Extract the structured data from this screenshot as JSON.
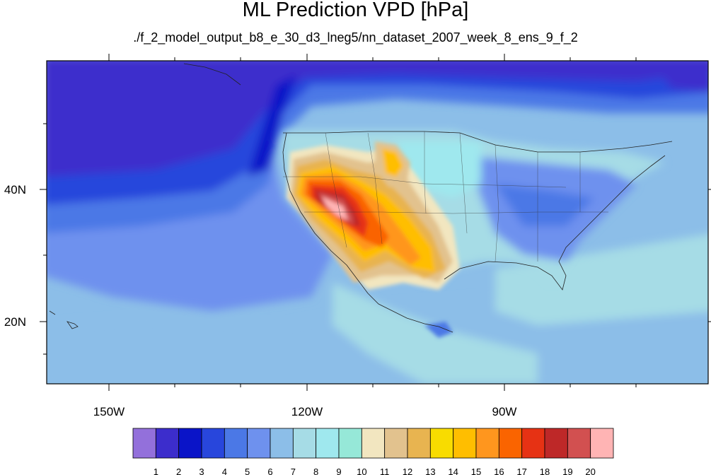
{
  "title": "ML Prediction VPD [hPa]",
  "subtitle": "./f_2_model_output_b8_e_30_d3_lneg5/nn_dataset_2007_week_8_ens_9_f_2",
  "map": {
    "lon_range": [
      -160,
      -62
    ],
    "lat_range": [
      10,
      59
    ],
    "lon_ticks": [
      {
        "value": -150,
        "label": "150W"
      },
      {
        "value": -120,
        "label": "120W"
      },
      {
        "value": -90,
        "label": "90W"
      }
    ],
    "lat_ticks": [
      {
        "value": 40,
        "label": "40N"
      },
      {
        "value": 20,
        "label": "20N"
      }
    ]
  },
  "colorbar": {
    "labels": [
      "1",
      "2",
      "3",
      "4",
      "5",
      "6",
      "7",
      "8",
      "9",
      "10",
      "11",
      "12",
      "13",
      "14",
      "15",
      "16",
      "17",
      "18",
      "19",
      "20"
    ],
    "colors": [
      "#9370db",
      "#3c2dcc",
      "#0a14c8",
      "#2846dc",
      "#4b78e6",
      "#6e91ee",
      "#8cbee8",
      "#a6dce6",
      "#9fe8ee",
      "#96e8d8",
      "#f2e6c0",
      "#e2c28e",
      "#e8b450",
      "#f8dc00",
      "#ffbe00",
      "#ff961e",
      "#fa6400",
      "#e63214",
      "#be2828",
      "#d25050",
      "#ffb4b4"
    ]
  }
}
